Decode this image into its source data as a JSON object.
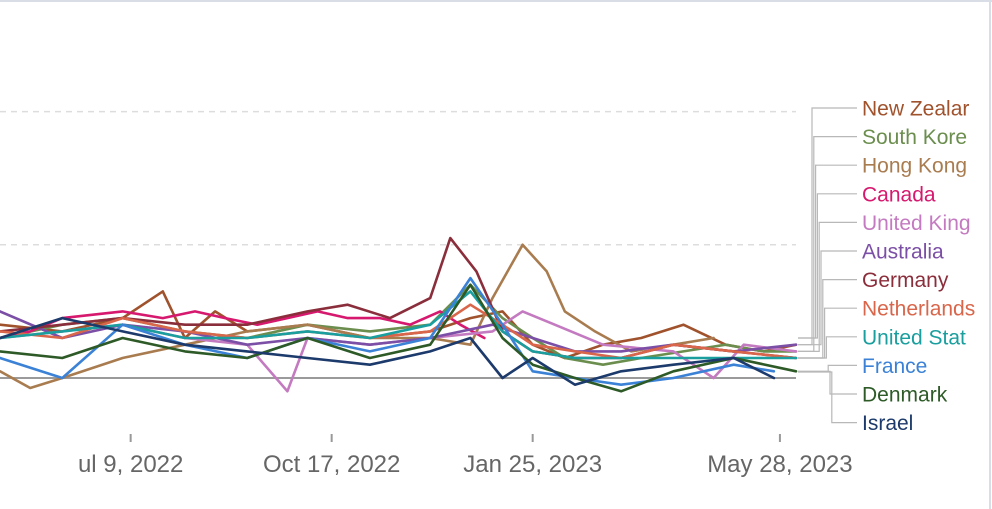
{
  "chart_data": {
    "type": "line",
    "title": "",
    "xlabel": "",
    "ylabel": "",
    "x_tick_labels": [
      "ul 9, 2022",
      "Oct 17, 2022",
      "Jan 25, 2023",
      "May 28, 2023"
    ],
    "x_ticks": [
      "2022-07-09",
      "2022-10-17",
      "2023-01-25",
      "2023-05-28"
    ],
    "xlim": [
      "2022-05-05",
      "2023-06-05"
    ],
    "ylim": [
      0,
      5
    ],
    "y_gridlines": [
      2,
      4
    ],
    "y_baseline": 0,
    "legend_position": "right",
    "series": [
      {
        "name": "New Zealar",
        "color": "#a0522d",
        "x": [
          "2022-05-05",
          "2022-06-05",
          "2022-07-05",
          "2022-07-25",
          "2022-08-05",
          "2022-08-20",
          "2022-09-05",
          "2022-10-05",
          "2022-11-05",
          "2022-12-05",
          "2022-12-25",
          "2023-01-10",
          "2023-01-25",
          "2023-02-10",
          "2023-03-01",
          "2023-03-20",
          "2023-04-10",
          "2023-05-01",
          "2023-05-20",
          "2023-06-05"
        ],
        "values": [
          0.8,
          0.7,
          0.9,
          1.3,
          0.6,
          1.0,
          0.7,
          0.8,
          0.6,
          0.7,
          0.9,
          1.0,
          0.5,
          0.3,
          0.5,
          0.6,
          0.8,
          0.5,
          0.4,
          0.5
        ]
      },
      {
        "name": "South Kore",
        "color": "#6b8e4e",
        "x": [
          "2022-05-05",
          "2022-06-05",
          "2022-07-05",
          "2022-08-05",
          "2022-09-05",
          "2022-10-05",
          "2022-11-05",
          "2022-12-05",
          "2022-12-25",
          "2023-01-10",
          "2023-01-25",
          "2023-02-10",
          "2023-03-01",
          "2023-03-20",
          "2023-04-10",
          "2023-05-01",
          "2023-05-20",
          "2023-06-05"
        ],
        "values": [
          0.6,
          0.8,
          0.9,
          0.7,
          0.6,
          0.8,
          0.7,
          0.8,
          1.4,
          0.9,
          0.6,
          0.3,
          0.2,
          0.3,
          0.4,
          0.5,
          0.4,
          0.4
        ]
      },
      {
        "name": "Hong Kong",
        "color": "#a97c50",
        "x": [
          "2022-05-05",
          "2022-05-20",
          "2022-06-05",
          "2022-07-05",
          "2022-08-05",
          "2022-09-05",
          "2022-10-05",
          "2022-11-05",
          "2022-12-05",
          "2022-12-25",
          "2023-01-05",
          "2023-01-20",
          "2023-02-01",
          "2023-02-10",
          "2023-02-25",
          "2023-03-15",
          "2023-04-05",
          "2023-04-25"
        ],
        "values": [
          0.1,
          -0.15,
          0.0,
          0.3,
          0.5,
          0.7,
          0.8,
          0.6,
          0.6,
          0.5,
          1.2,
          2.0,
          1.6,
          1.0,
          0.7,
          0.4,
          0.5,
          0.6
        ]
      },
      {
        "name": "Canada",
        "color": "#d6196e",
        "x": [
          "2022-05-05",
          "2022-05-20",
          "2022-06-05",
          "2022-07-05",
          "2022-07-25",
          "2022-08-10",
          "2022-08-25",
          "2022-09-10",
          "2022-09-25",
          "2022-10-10",
          "2022-10-25",
          "2022-11-10",
          "2022-11-25",
          "2022-12-10",
          "2022-12-20",
          "2023-01-01"
        ],
        "values": [
          0.6,
          0.7,
          0.9,
          1.0,
          0.9,
          1.0,
          0.9,
          0.8,
          0.9,
          1.0,
          0.9,
          0.9,
          0.8,
          1.0,
          0.8,
          0.6
        ]
      },
      {
        "name": "United King",
        "color": "#c47ac0",
        "x": [
          "2022-05-05",
          "2022-06-05",
          "2022-07-05",
          "2022-08-05",
          "2022-09-05",
          "2022-09-25",
          "2022-10-05",
          "2022-11-05",
          "2022-12-05",
          "2023-01-05",
          "2023-01-20",
          "2023-02-05",
          "2023-03-01",
          "2023-04-05",
          "2023-04-25",
          "2023-05-10",
          "2023-06-05"
        ],
        "values": [
          0.6,
          0.7,
          0.8,
          0.6,
          0.5,
          -0.2,
          0.6,
          0.5,
          0.6,
          0.7,
          1.0,
          0.8,
          0.5,
          0.4,
          0.0,
          0.5,
          0.4
        ]
      },
      {
        "name": "Australia",
        "color": "#7b4fa6",
        "x": [
          "2022-05-05",
          "2022-06-05",
          "2022-07-05",
          "2022-08-05",
          "2022-09-05",
          "2022-10-05",
          "2022-11-05",
          "2022-12-05",
          "2023-01-05",
          "2023-01-25",
          "2023-02-15",
          "2023-03-10",
          "2023-04-05",
          "2023-05-05",
          "2023-06-05"
        ],
        "values": [
          1.0,
          0.6,
          0.8,
          0.7,
          0.5,
          0.6,
          0.5,
          0.6,
          0.8,
          0.6,
          0.4,
          0.4,
          0.5,
          0.4,
          0.5
        ]
      },
      {
        "name": "Germany",
        "color": "#8b2e3b",
        "x": [
          "2022-05-05",
          "2022-06-05",
          "2022-07-05",
          "2022-08-05",
          "2022-09-05",
          "2022-10-05",
          "2022-10-25",
          "2022-11-15",
          "2022-12-05",
          "2022-12-15",
          "2022-12-28",
          "2023-01-10",
          "2023-01-25",
          "2023-02-15",
          "2023-03-10",
          "2023-04-05",
          "2023-05-05",
          "2023-06-05"
        ],
        "values": [
          0.7,
          0.8,
          0.9,
          0.8,
          0.8,
          1.0,
          1.1,
          0.9,
          1.2,
          2.1,
          1.6,
          0.7,
          0.4,
          0.3,
          0.3,
          0.5,
          0.4,
          0.3
        ]
      },
      {
        "name": "Netherlands",
        "color": "#d9664a",
        "x": [
          "2022-05-05",
          "2022-06-05",
          "2022-07-05",
          "2022-08-05",
          "2022-09-05",
          "2022-10-05",
          "2022-11-05",
          "2022-12-05",
          "2022-12-25",
          "2023-01-10",
          "2023-01-25",
          "2023-02-15",
          "2023-03-10",
          "2023-04-05",
          "2023-05-05",
          "2023-06-05"
        ],
        "values": [
          0.7,
          0.6,
          0.9,
          0.7,
          0.6,
          0.7,
          0.6,
          0.7,
          1.1,
          0.8,
          0.5,
          0.4,
          0.3,
          0.5,
          0.4,
          0.3
        ]
      },
      {
        "name": "United Stat",
        "color": "#1a9e9e",
        "x": [
          "2022-05-05",
          "2022-06-05",
          "2022-07-05",
          "2022-08-05",
          "2022-09-05",
          "2022-10-05",
          "2022-11-05",
          "2022-12-05",
          "2022-12-25",
          "2023-01-10",
          "2023-01-25",
          "2023-02-15",
          "2023-03-10",
          "2023-04-05",
          "2023-05-05",
          "2023-06-05"
        ],
        "values": [
          0.6,
          0.7,
          0.8,
          0.6,
          0.6,
          0.7,
          0.6,
          0.8,
          1.3,
          0.7,
          0.4,
          0.3,
          0.3,
          0.3,
          0.3,
          0.3
        ]
      },
      {
        "name": "France",
        "color": "#3b82d6",
        "x": [
          "2022-05-05",
          "2022-06-05",
          "2022-07-05",
          "2022-08-05",
          "2022-09-05",
          "2022-10-05",
          "2022-11-05",
          "2022-12-05",
          "2022-12-25",
          "2023-01-10",
          "2023-01-25",
          "2023-02-15",
          "2023-03-10",
          "2023-04-05",
          "2023-05-05",
          "2023-05-25"
        ],
        "values": [
          0.3,
          0.0,
          0.8,
          0.5,
          0.3,
          0.6,
          0.4,
          0.6,
          1.5,
          0.8,
          0.1,
          0.0,
          -0.1,
          0.0,
          0.2,
          0.1
        ]
      },
      {
        "name": "Denmark",
        "color": "#2d5a27",
        "x": [
          "2022-05-05",
          "2022-06-05",
          "2022-07-05",
          "2022-08-05",
          "2022-09-05",
          "2022-10-05",
          "2022-11-05",
          "2022-12-05",
          "2022-12-25",
          "2023-01-10",
          "2023-01-25",
          "2023-02-15",
          "2023-03-10",
          "2023-04-05",
          "2023-05-05",
          "2023-06-05"
        ],
        "values": [
          0.4,
          0.3,
          0.6,
          0.4,
          0.3,
          0.6,
          0.3,
          0.5,
          1.4,
          0.6,
          0.2,
          0.0,
          -0.2,
          0.1,
          0.3,
          0.1
        ]
      },
      {
        "name": "Israel",
        "color": "#1c3a6b",
        "x": [
          "2022-05-05",
          "2022-06-05",
          "2022-07-05",
          "2022-08-05",
          "2022-09-05",
          "2022-10-05",
          "2022-11-05",
          "2022-12-05",
          "2022-12-25",
          "2023-01-10",
          "2023-01-25",
          "2023-02-15",
          "2023-03-10",
          "2023-04-05",
          "2023-05-05",
          "2023-05-25"
        ],
        "values": [
          0.6,
          0.9,
          0.7,
          0.5,
          0.4,
          0.3,
          0.2,
          0.4,
          0.6,
          0.0,
          0.3,
          -0.1,
          0.1,
          0.2,
          0.3,
          0.0
        ]
      }
    ]
  }
}
